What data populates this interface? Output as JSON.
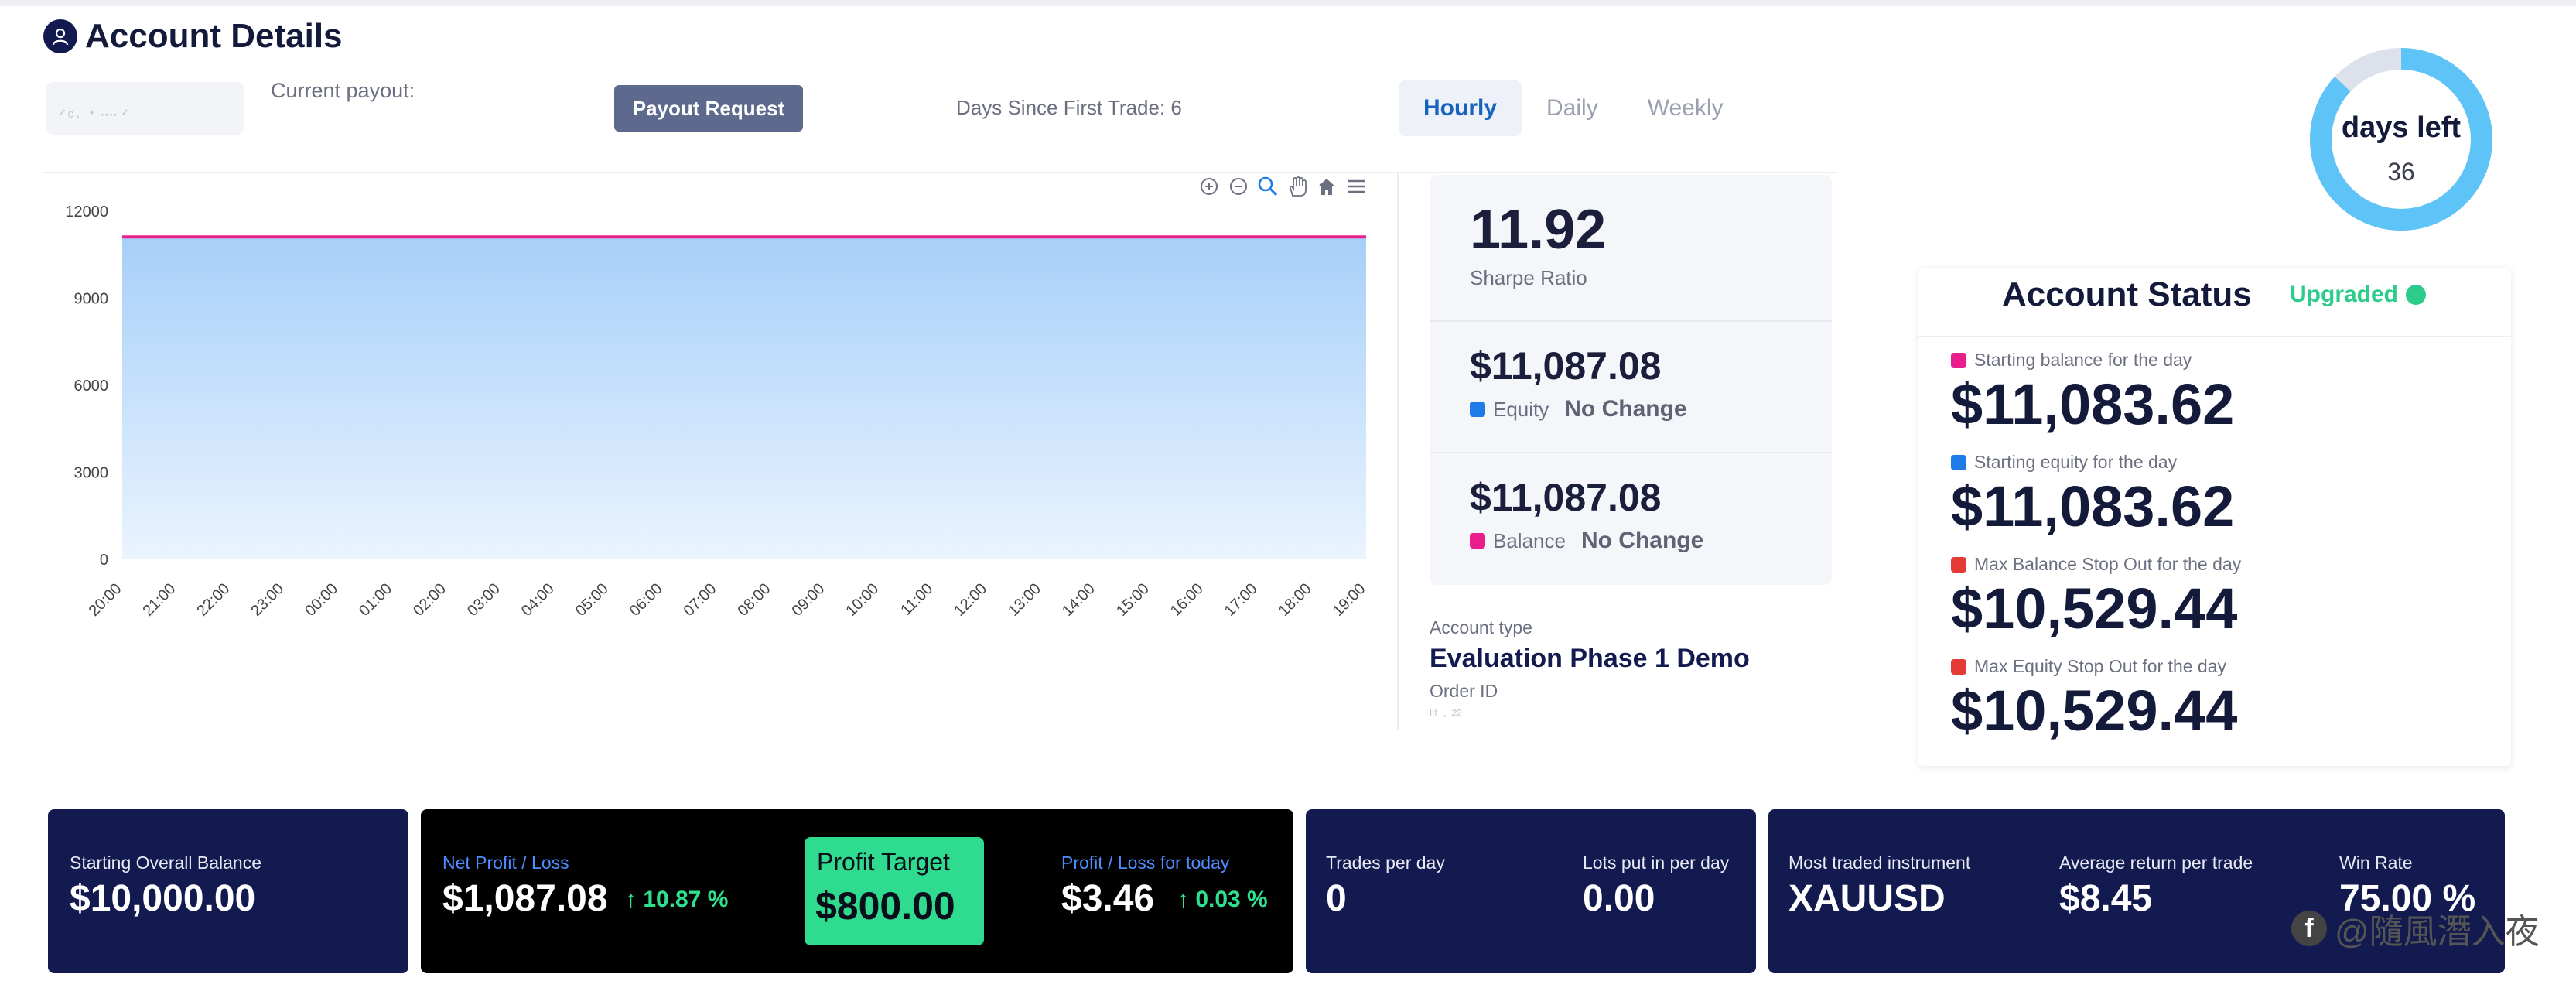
{
  "header": {
    "title": "Account Details",
    "account_masked": "ᐟᶜ·  ᕀ᠁  ᐟ",
    "current_payout_label": "Current payout:",
    "payout_button": "Payout Request",
    "days_since": "Days Since First Trade: 6",
    "tabs": [
      {
        "label": "Hourly",
        "active": true
      },
      {
        "label": "Daily",
        "active": false
      },
      {
        "label": "Weekly",
        "active": false
      }
    ]
  },
  "chart_data": {
    "type": "area",
    "x": [
      "20:00",
      "21:00",
      "22:00",
      "23:00",
      "00:00",
      "01:00",
      "02:00",
      "03:00",
      "04:00",
      "05:00",
      "06:00",
      "07:00",
      "08:00",
      "09:00",
      "10:00",
      "11:00",
      "12:00",
      "13:00",
      "14:00",
      "15:00",
      "16:00",
      "17:00",
      "18:00",
      "19:00"
    ],
    "series": [
      {
        "values": [
          11087.08,
          11087.08,
          11087.08,
          11087.08,
          11087.08,
          11087.08,
          11087.08,
          11087.08,
          11087.08,
          11087.08,
          11087.08,
          11087.08,
          11087.08,
          11087.08,
          11087.08,
          11087.08,
          11087.08,
          11087.08,
          11087.08,
          11087.08,
          11087.08,
          11087.08,
          11087.08,
          11087.08
        ],
        "color": "#1e88e5"
      },
      {
        "values": [
          11087.08,
          11087.08,
          11087.08,
          11087.08,
          11087.08,
          11087.08,
          11087.08,
          11087.08,
          11087.08,
          11087.08,
          11087.08,
          11087.08,
          11087.08,
          11087.08,
          11087.08,
          11087.08,
          11087.08,
          11087.08,
          11087.08,
          11087.08,
          11087.08,
          11087.08,
          11087.08,
          11087.08
        ],
        "color": "#e91e8c"
      }
    ],
    "yticks": [
      "12000",
      "9000",
      "6000",
      "3000",
      "0"
    ],
    "ylim": [
      0,
      12000
    ],
    "title": "",
    "xlabel": "",
    "ylabel": ""
  },
  "toolbar_icons": [
    "zoom-in-icon",
    "zoom-out-icon",
    "magnifier-icon",
    "pan-hand-icon",
    "home-icon",
    "menu-icon"
  ],
  "metrics": {
    "sharpe_value": "11.92",
    "sharpe_label": "Sharpe Ratio",
    "equity_value": "$11,087.08",
    "equity_label": "Equity",
    "equity_change": "No Change",
    "balance_value": "$11,087.08",
    "balance_label": "Balance",
    "balance_change": "No Change",
    "equity_color": "#1e7be8",
    "balance_color": "#e91e8c"
  },
  "account": {
    "type_label": "Account type",
    "type_value": "Evaluation Phase 1 Demo",
    "order_label": "Order ID",
    "order_value": "ˡᶦᵗ · ²²"
  },
  "donut": {
    "title": "days left",
    "value": "36",
    "fraction_remaining": 0.87,
    "color": "#5ec4f7",
    "track_color": "#dde1ec"
  },
  "status": {
    "title": "Account Status",
    "badge": "Upgraded",
    "items": [
      {
        "label": "Starting balance for the day",
        "value": "$11,083.62",
        "color": "#e91e8c"
      },
      {
        "label": "Starting equity for the day",
        "value": "$11,083.62",
        "color": "#1e7be8"
      },
      {
        "label": "Max Balance Stop Out for the day",
        "value": "$10,529.44",
        "color": "#e53935"
      },
      {
        "label": "Max Equity Stop Out for the day",
        "value": "$10,529.44",
        "color": "#e53935"
      }
    ]
  },
  "cards": {
    "starting_balance_label": "Starting Overall Balance",
    "starting_balance_value": "$10,000.00",
    "net_profit_label": "Net Profit / Loss",
    "net_profit_value": "$1,087.08",
    "net_profit_pct": "↑ 10.87 %",
    "profit_target_label": "Profit Target",
    "profit_target_value": "$800.00",
    "today_label": "Profit / Loss for today",
    "today_value": "$3.46",
    "today_pct": "↑ 0.03 %",
    "trades_label": "Trades per day",
    "trades_value": "0",
    "lots_label": "Lots put in per day",
    "lots_value": "0.00",
    "instrument_label": "Most traded instrument",
    "instrument_value": "XAUUSD",
    "avg_return_label": "Average return per trade",
    "avg_return_value": "$8.45",
    "winrate_label": "Win Rate",
    "winrate_value": "75.00 %"
  },
  "watermark": {
    "icon_letter": "f",
    "text": "@隨風潛入夜"
  }
}
